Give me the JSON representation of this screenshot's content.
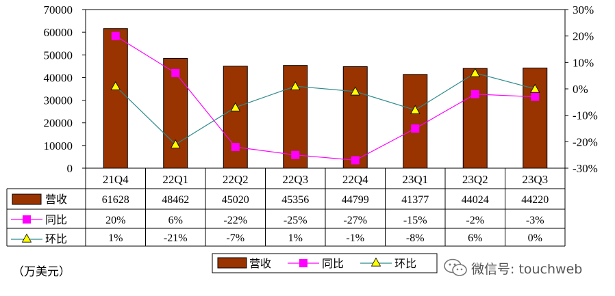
{
  "chart_data": {
    "type": "bar+line",
    "categories": [
      "21Q4",
      "22Q1",
      "22Q2",
      "22Q3",
      "22Q4",
      "23Q1",
      "23Q2",
      "23Q3"
    ],
    "series": [
      {
        "name": "营收",
        "type": "bar",
        "axis": "left",
        "values": [
          61628,
          48462,
          45020,
          45356,
          44799,
          41377,
          44024,
          44220
        ]
      },
      {
        "name": "同比",
        "type": "line",
        "axis": "right",
        "values": [
          20,
          6,
          -22,
          -25,
          -27,
          -15,
          -2,
          -3
        ]
      },
      {
        "name": "环比",
        "type": "line",
        "axis": "right",
        "values": [
          1,
          -21,
          -7,
          1,
          -1,
          -8,
          6,
          0
        ]
      }
    ],
    "table": {
      "rows": [
        [
          "61628",
          "48462",
          "45020",
          "45356",
          "44799",
          "41377",
          "44024",
          "44220"
        ],
        [
          "20%",
          "6%",
          "-22%",
          "-25%",
          "-27%",
          "-15%",
          "-2%",
          "-3%"
        ],
        [
          "1%",
          "-21%",
          "-7%",
          "1%",
          "-1%",
          "-8%",
          "6%",
          "0%"
        ]
      ]
    },
    "y_left": {
      "min": 0,
      "max": 70000,
      "ticks": [
        "0",
        "10000",
        "20000",
        "30000",
        "40000",
        "50000",
        "60000",
        "70000"
      ]
    },
    "y_right": {
      "min": -30,
      "max": 30,
      "ticks": [
        "-30%",
        "-20%",
        "-10%",
        "0%",
        "10%",
        "20%",
        "30%"
      ]
    },
    "colors": {
      "bar": "#993300",
      "yoy": "#FF00FF",
      "qoq": "#2E8B8B",
      "qoq_marker": "#FFFF00"
    },
    "legend_position": "bottom",
    "grid": false
  },
  "unit_label": "（万美元）",
  "watermark": "微信号: touchweb"
}
